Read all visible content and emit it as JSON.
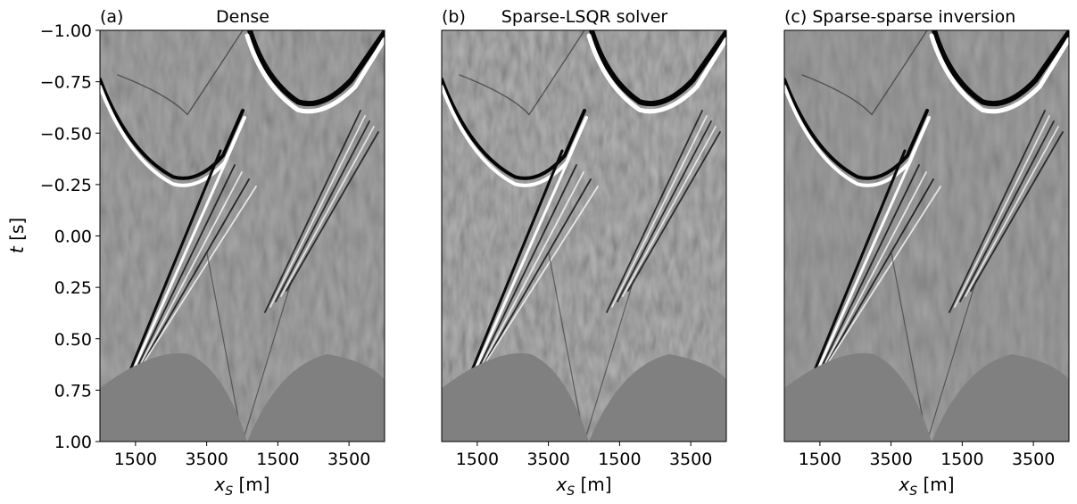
{
  "figure": {
    "ylabel_var": "t",
    "ylabel_unit": "[s]",
    "xlabel_var": "x",
    "xlabel_sub": "S",
    "xlabel_unit": "[m]"
  },
  "chart_data": [
    {
      "type": "heatmap",
      "panel_tag": "(a)",
      "title": "Dense",
      "ylim": [
        -1.0,
        1.0
      ],
      "yticks": [
        "−1.00",
        "−0.75",
        "−0.50",
        "−0.25",
        "0.00",
        "0.25",
        "0.50",
        "0.75",
        "1.00"
      ],
      "xticks": [
        "1500",
        "3500",
        "1500",
        "3500"
      ],
      "colormap": "grayscale",
      "background": "#808080",
      "events": [
        {
          "name": "hyperbola-left",
          "apex_t": -0.27,
          "strength": 1.0
        },
        {
          "name": "hyperbola-right",
          "apex_t": -0.63,
          "strength": 1.0
        },
        {
          "name": "diffraction-left",
          "apex_t": -0.59,
          "strength": 0.4
        }
      ]
    },
    {
      "type": "heatmap",
      "panel_tag": "(b)",
      "title": "Sparse-LSQR solver",
      "ylim": [
        -1.0,
        1.0
      ],
      "xticks": [
        "1500",
        "3500",
        "1500",
        "3500"
      ],
      "colormap": "grayscale",
      "background": "#808080",
      "events": [
        {
          "name": "hyperbola-left",
          "apex_t": -0.27,
          "strength": 1.0
        },
        {
          "name": "hyperbola-right",
          "apex_t": -0.63,
          "strength": 1.0
        },
        {
          "name": "diffraction-left",
          "apex_t": -0.59,
          "strength": 0.4
        }
      ]
    },
    {
      "type": "heatmap",
      "panel_tag": "(c)",
      "title": "Sparse-sparse inversion",
      "ylim": [
        -1.0,
        1.0
      ],
      "xticks": [
        "1500",
        "3500",
        "1500",
        "3500"
      ],
      "colormap": "grayscale",
      "background": "#808080",
      "events": [
        {
          "name": "hyperbola-left",
          "apex_t": -0.27,
          "strength": 1.0
        },
        {
          "name": "hyperbola-right",
          "apex_t": -0.63,
          "strength": 1.0
        },
        {
          "name": "diffraction-left",
          "apex_t": -0.59,
          "strength": 0.4
        }
      ]
    }
  ]
}
